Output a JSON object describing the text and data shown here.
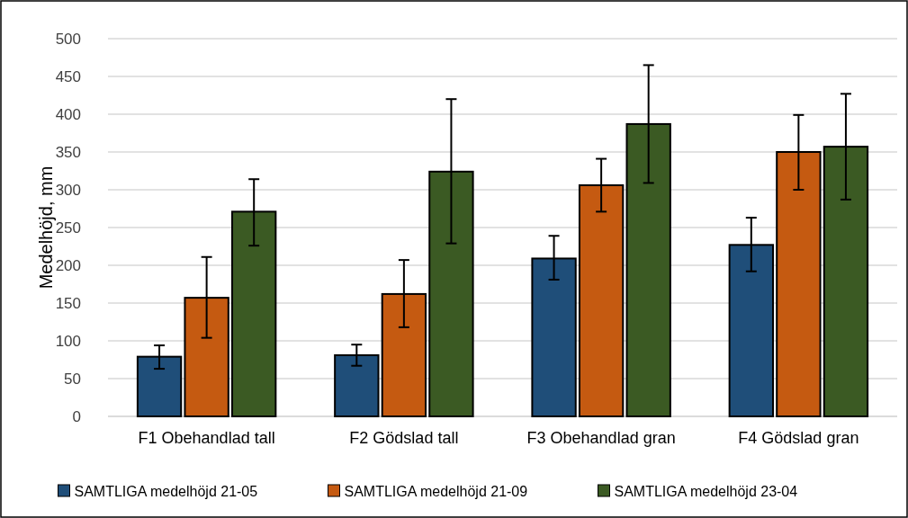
{
  "chart_data": {
    "type": "bar",
    "ylabel": "Medelhöjd, mm",
    "categories": [
      "F1 Obehandlad tall",
      "F2 Gödslad tall",
      "F3 Obehandlad gran",
      "F4 Gödslad gran"
    ],
    "series": [
      {
        "name": "SAMTLIGA medelhöjd 21-05",
        "color": "#1f4e79",
        "values": [
          79,
          81,
          209,
          227
        ],
        "errors": [
          [
            63,
            94
          ],
          [
            67,
            95
          ],
          [
            181,
            239
          ],
          [
            192,
            263
          ]
        ]
      },
      {
        "name": "SAMTLIGA medelhöjd 21-09",
        "color": "#c55a11",
        "values": [
          157,
          162,
          306,
          350
        ],
        "errors": [
          [
            104,
            211
          ],
          [
            118,
            207
          ],
          [
            271,
            341
          ],
          [
            300,
            399
          ]
        ]
      },
      {
        "name": "SAMTLIGA medelhöjd 23-04",
        "color": "#3b5a23",
        "values": [
          271,
          324,
          387,
          357
        ],
        "errors": [
          [
            226,
            314
          ],
          [
            229,
            420
          ],
          [
            309,
            465
          ],
          [
            287,
            427
          ]
        ]
      }
    ],
    "ylim": [
      0,
      500
    ],
    "yticks": [
      0,
      50,
      100,
      150,
      200,
      250,
      300,
      350,
      400,
      450,
      500
    ],
    "grid": "y",
    "legend": "bottom"
  }
}
